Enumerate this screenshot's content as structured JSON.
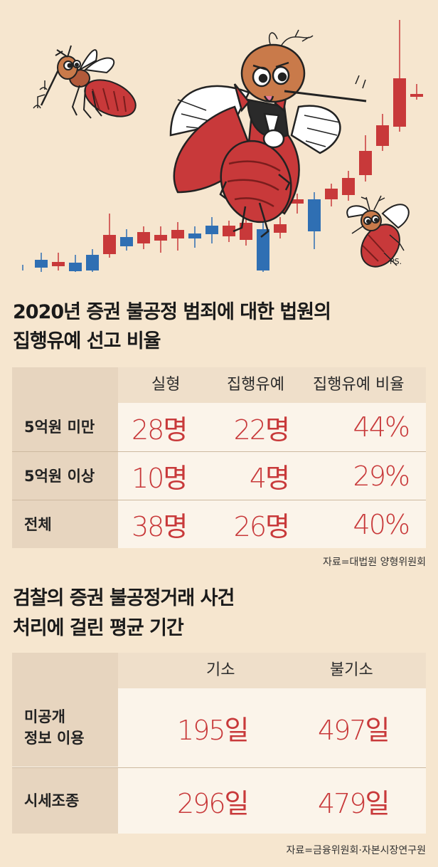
{
  "colors": {
    "background": "#f6e6cf",
    "accent_red": "#c8393a",
    "candle_blue": "#2f6fb3",
    "candle_red": "#c8393a"
  },
  "illustration": {
    "signature": "PS."
  },
  "section1": {
    "title_line1": "2020년 증권 불공정 범죄에 대한 법원의",
    "title_line2": "집행유예 선고 비율",
    "columns": [
      "실형",
      "집행유예",
      "집행유예 비율"
    ],
    "rows": [
      {
        "label": "5억원 미만",
        "values": [
          "28명",
          "22명",
          "44%"
        ]
      },
      {
        "label": "5억원 이상",
        "values": [
          "10명",
          "4명",
          "29%"
        ]
      },
      {
        "label": "전체",
        "values": [
          "38명",
          "26명",
          "40%"
        ]
      }
    ],
    "source": "자료=대법원 양형위원회"
  },
  "section2": {
    "title_line1": "검찰의 증권 불공정거래 사건",
    "title_line2": "처리에 걸린 평균 기간",
    "columns": [
      "기소",
      "불기소"
    ],
    "rows": [
      {
        "label_line1": "미공개",
        "label_line2": "정보 이용",
        "values": [
          "195일",
          "497일"
        ]
      },
      {
        "label_line1": "시세조종",
        "label_line2": "",
        "values": [
          "296일",
          "479일"
        ]
      }
    ],
    "source": "자료=금융위원회·자본시장연구원"
  }
}
